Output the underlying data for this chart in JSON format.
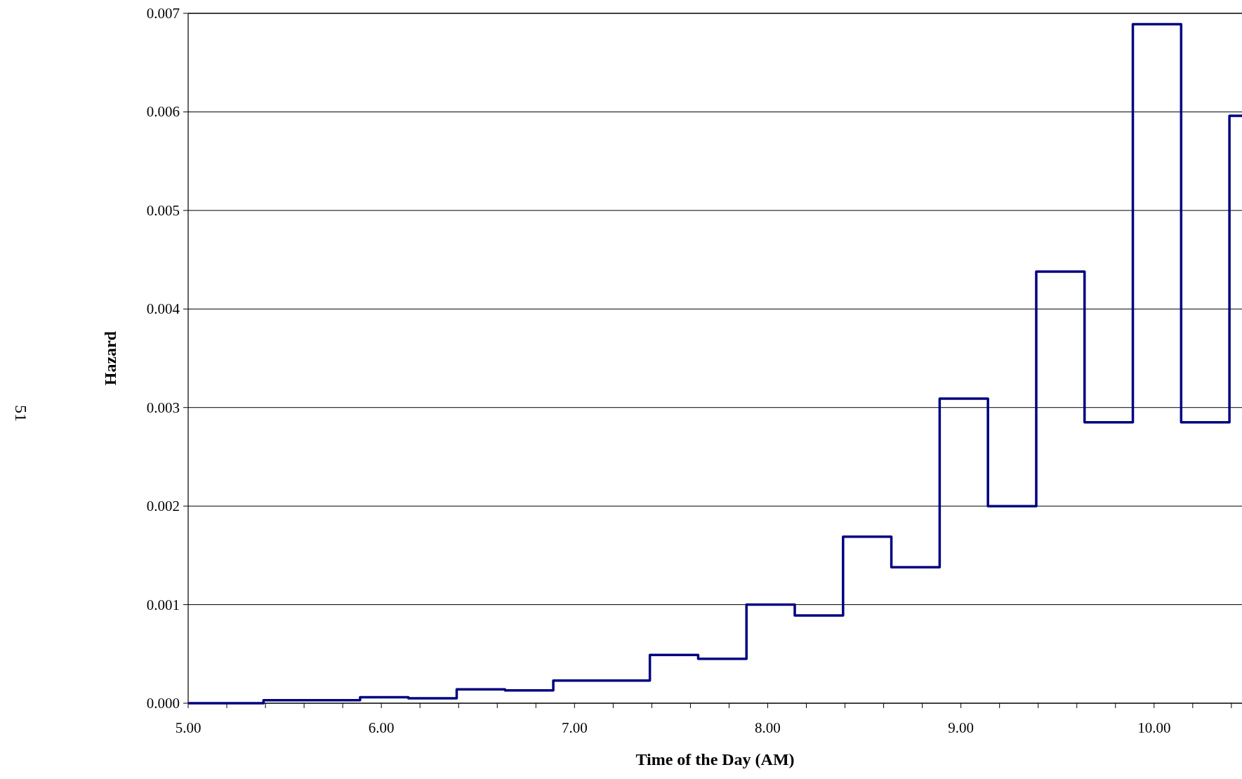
{
  "chart_data": {
    "type": "step",
    "xlabel": "Time of the Day (AM)",
    "ylabel": "Hazard",
    "annotations": [
      "51"
    ],
    "x": [
      5.0,
      5.39,
      5.64,
      5.89,
      6.14,
      6.39,
      6.64,
      6.89,
      7.14,
      7.39,
      7.64,
      7.89,
      8.14,
      8.39,
      8.64,
      8.89,
      9.14,
      9.39,
      9.64,
      9.89,
      10.14,
      10.39,
      10.455
    ],
    "series": [
      {
        "color": "#000080",
        "values": [
          0,
          3e-05,
          3e-05,
          6e-05,
          5e-05,
          0.00014,
          0.00013,
          0.00023,
          0.00023,
          0.00049,
          0.00045,
          0.001,
          0.00089,
          0.00169,
          0.00138,
          0.00309,
          0.002,
          0.00438,
          0.00285,
          0.00689,
          0.00285,
          0.00596,
          0.00596
        ]
      }
    ],
    "xlim": [
      5.0,
      10.455
    ],
    "xticks": [
      {
        "value": 5,
        "label": "5.00"
      },
      {
        "value": 5.2,
        "label": null
      },
      {
        "value": 5.4,
        "label": null
      },
      {
        "value": 5.6,
        "label": null
      },
      {
        "value": 5.8,
        "label": null
      },
      {
        "value": 6,
        "label": "6.00"
      },
      {
        "value": 6.2,
        "label": null
      },
      {
        "value": 6.4,
        "label": null
      },
      {
        "value": 6.6,
        "label": null
      },
      {
        "value": 6.8,
        "label": null
      },
      {
        "value": 7,
        "label": "7.00"
      },
      {
        "value": 7.2,
        "label": null
      },
      {
        "value": 7.4,
        "label": null
      },
      {
        "value": 7.6,
        "label": null
      },
      {
        "value": 7.8,
        "label": null
      },
      {
        "value": 8,
        "label": "8.00"
      },
      {
        "value": 8.2,
        "label": null
      },
      {
        "value": 8.4,
        "label": null
      },
      {
        "value": 8.6,
        "label": null
      },
      {
        "value": 8.8,
        "label": null
      },
      {
        "value": 9,
        "label": "9.00"
      },
      {
        "value": 9.2,
        "label": null
      },
      {
        "value": 9.4,
        "label": null
      },
      {
        "value": 9.6,
        "label": null
      },
      {
        "value": 9.8,
        "label": null
      },
      {
        "value": 10,
        "label": "10.00"
      },
      {
        "value": 10.2,
        "label": null
      },
      {
        "value": 10.4,
        "label": null
      }
    ],
    "ylim": [
      0,
      0.007
    ],
    "yticks": [
      {
        "value": 0,
        "label": "0.000"
      },
      {
        "value": 0.001,
        "label": "0.001"
      },
      {
        "value": 0.002,
        "label": "0.002"
      },
      {
        "value": 0.003,
        "label": "0.003"
      },
      {
        "value": 0.004,
        "label": "0.004"
      },
      {
        "value": 0.005,
        "label": "0.005"
      },
      {
        "value": 0.006,
        "label": "0.006"
      },
      {
        "value": 0.007,
        "label": "0.007"
      }
    ],
    "grid": "y",
    "line_style": "solid"
  }
}
